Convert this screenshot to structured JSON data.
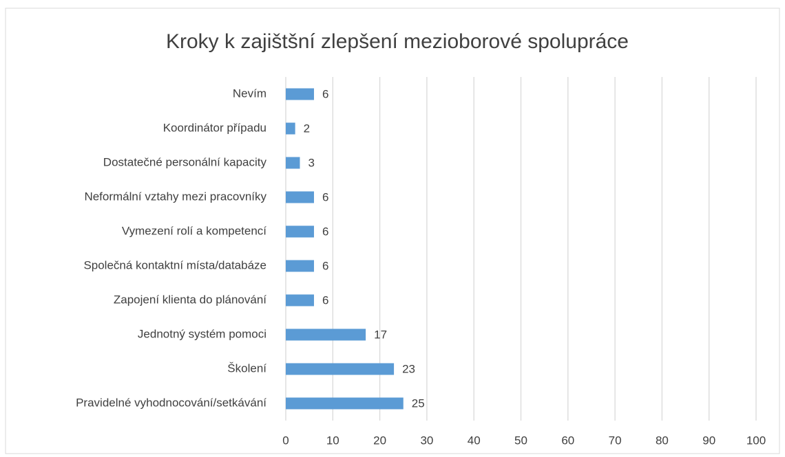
{
  "chart_data": {
    "type": "barh",
    "title": "Kroky k zajištšní zlepšení mezioborové spolupráce",
    "categories": [
      "Nevím",
      "Koordinátor případu",
      "Dostatečné personální kapacity",
      "Neformální vztahy mezi pracovníky",
      "Vymezení rolí a kompetencí",
      "Společná kontaktní místa/databáze",
      "Zapojení klienta do plánování",
      "Jednotný systém pomoci",
      "Školení",
      "Pravidelné vyhodnocování/setkávání"
    ],
    "values": [
      6,
      2,
      3,
      6,
      6,
      6,
      6,
      17,
      23,
      25
    ],
    "color": "#5b9bd5",
    "xlim": [
      0,
      100
    ],
    "xticks": [
      0,
      10,
      20,
      30,
      40,
      50,
      60,
      70,
      80,
      90,
      100
    ],
    "grid": true
  }
}
